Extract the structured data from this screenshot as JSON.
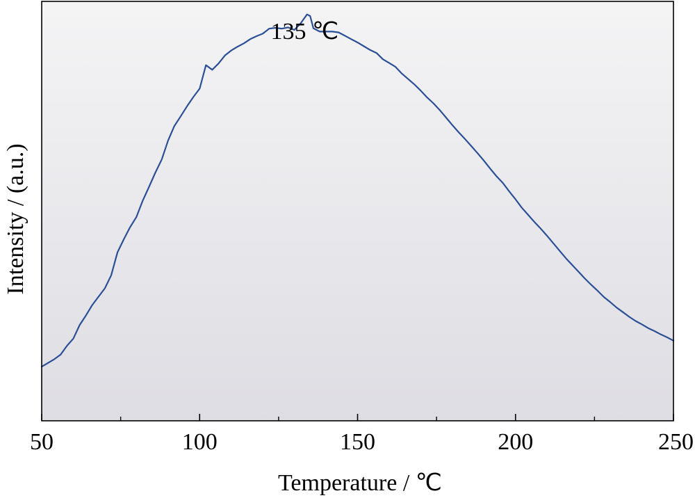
{
  "chart_data": {
    "type": "line",
    "title": "",
    "xlabel": "Temperature / ℃",
    "ylabel": "Intensity / (a.u.)",
    "xlim": [
      50,
      250
    ],
    "ylim": [
      0,
      1
    ],
    "x_ticks": [
      50,
      100,
      150,
      200,
      250
    ],
    "x_minor_ticks": [
      75,
      125,
      175,
      225
    ],
    "y_ticks_shown": false,
    "grid": false,
    "legend": "none",
    "line_color": "#2b4f96",
    "background_gradient": [
      "#f4f4f5",
      "#dedde3"
    ],
    "annotations": [
      {
        "text": "135 ℃",
        "x": 135,
        "y": 0.95
      }
    ],
    "series": [
      {
        "x": [
          50,
          52,
          54,
          56,
          58,
          60,
          62,
          64,
          66,
          68,
          70,
          72,
          74,
          76,
          78,
          80,
          82,
          84,
          86,
          88,
          90,
          92,
          94,
          96,
          98,
          100,
          102,
          104,
          106,
          108,
          110,
          112,
          114,
          116,
          118,
          120,
          122,
          124,
          126,
          128,
          130,
          132,
          134,
          135,
          136,
          138,
          140,
          142,
          144,
          146,
          148,
          150,
          152,
          154,
          156,
          158,
          160,
          162,
          164,
          166,
          168,
          170,
          172,
          174,
          176,
          178,
          180,
          182,
          184,
          186,
          188,
          190,
          192,
          194,
          196,
          198,
          200,
          202,
          204,
          206,
          208,
          210,
          212,
          214,
          216,
          218,
          220,
          222,
          224,
          226,
          228,
          230,
          232,
          234,
          236,
          238,
          240,
          242,
          244,
          246,
          248,
          250
        ],
        "y": [
          0.129,
          0.138,
          0.147,
          0.158,
          0.179,
          0.196,
          0.228,
          0.251,
          0.276,
          0.296,
          0.316,
          0.347,
          0.402,
          0.433,
          0.462,
          0.486,
          0.525,
          0.558,
          0.592,
          0.623,
          0.668,
          0.703,
          0.726,
          0.75,
          0.772,
          0.792,
          0.848,
          0.837,
          0.852,
          0.871,
          0.883,
          0.892,
          0.9,
          0.91,
          0.917,
          0.923,
          0.935,
          0.937,
          0.935,
          0.938,
          0.932,
          0.948,
          0.969,
          0.965,
          0.936,
          0.928,
          0.928,
          0.928,
          0.926,
          0.918,
          0.91,
          0.902,
          0.893,
          0.884,
          0.877,
          0.862,
          0.853,
          0.844,
          0.828,
          0.815,
          0.802,
          0.787,
          0.771,
          0.757,
          0.741,
          0.723,
          0.705,
          0.688,
          0.672,
          0.655,
          0.638,
          0.62,
          0.601,
          0.583,
          0.567,
          0.547,
          0.528,
          0.508,
          0.491,
          0.474,
          0.458,
          0.441,
          0.423,
          0.405,
          0.387,
          0.371,
          0.355,
          0.339,
          0.324,
          0.31,
          0.295,
          0.283,
          0.27,
          0.259,
          0.248,
          0.238,
          0.23,
          0.221,
          0.214,
          0.206,
          0.199,
          0.191
        ]
      }
    ]
  }
}
